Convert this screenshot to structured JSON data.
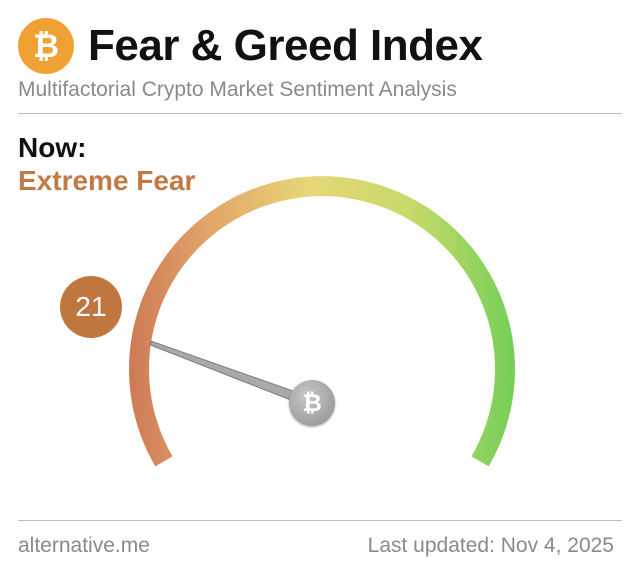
{
  "header": {
    "logo_glyph": "₿",
    "title": "Fear & Greed Index",
    "subtitle": "Multifactorial Crypto Market Sentiment Analysis"
  },
  "now": {
    "label": "Now:",
    "classification": "Extreme Fear",
    "classification_color": "#c17a45"
  },
  "gauge": {
    "value": 21,
    "value_label": "21",
    "min": 0,
    "max": 100,
    "hub_glyph": "₿",
    "colors": {
      "fear": "#c97050",
      "neutral": "#e7d777",
      "greed": "#79cf5a"
    }
  },
  "footer": {
    "source": "alternative.me",
    "last_updated": "Last updated: Nov 4, 2025"
  }
}
